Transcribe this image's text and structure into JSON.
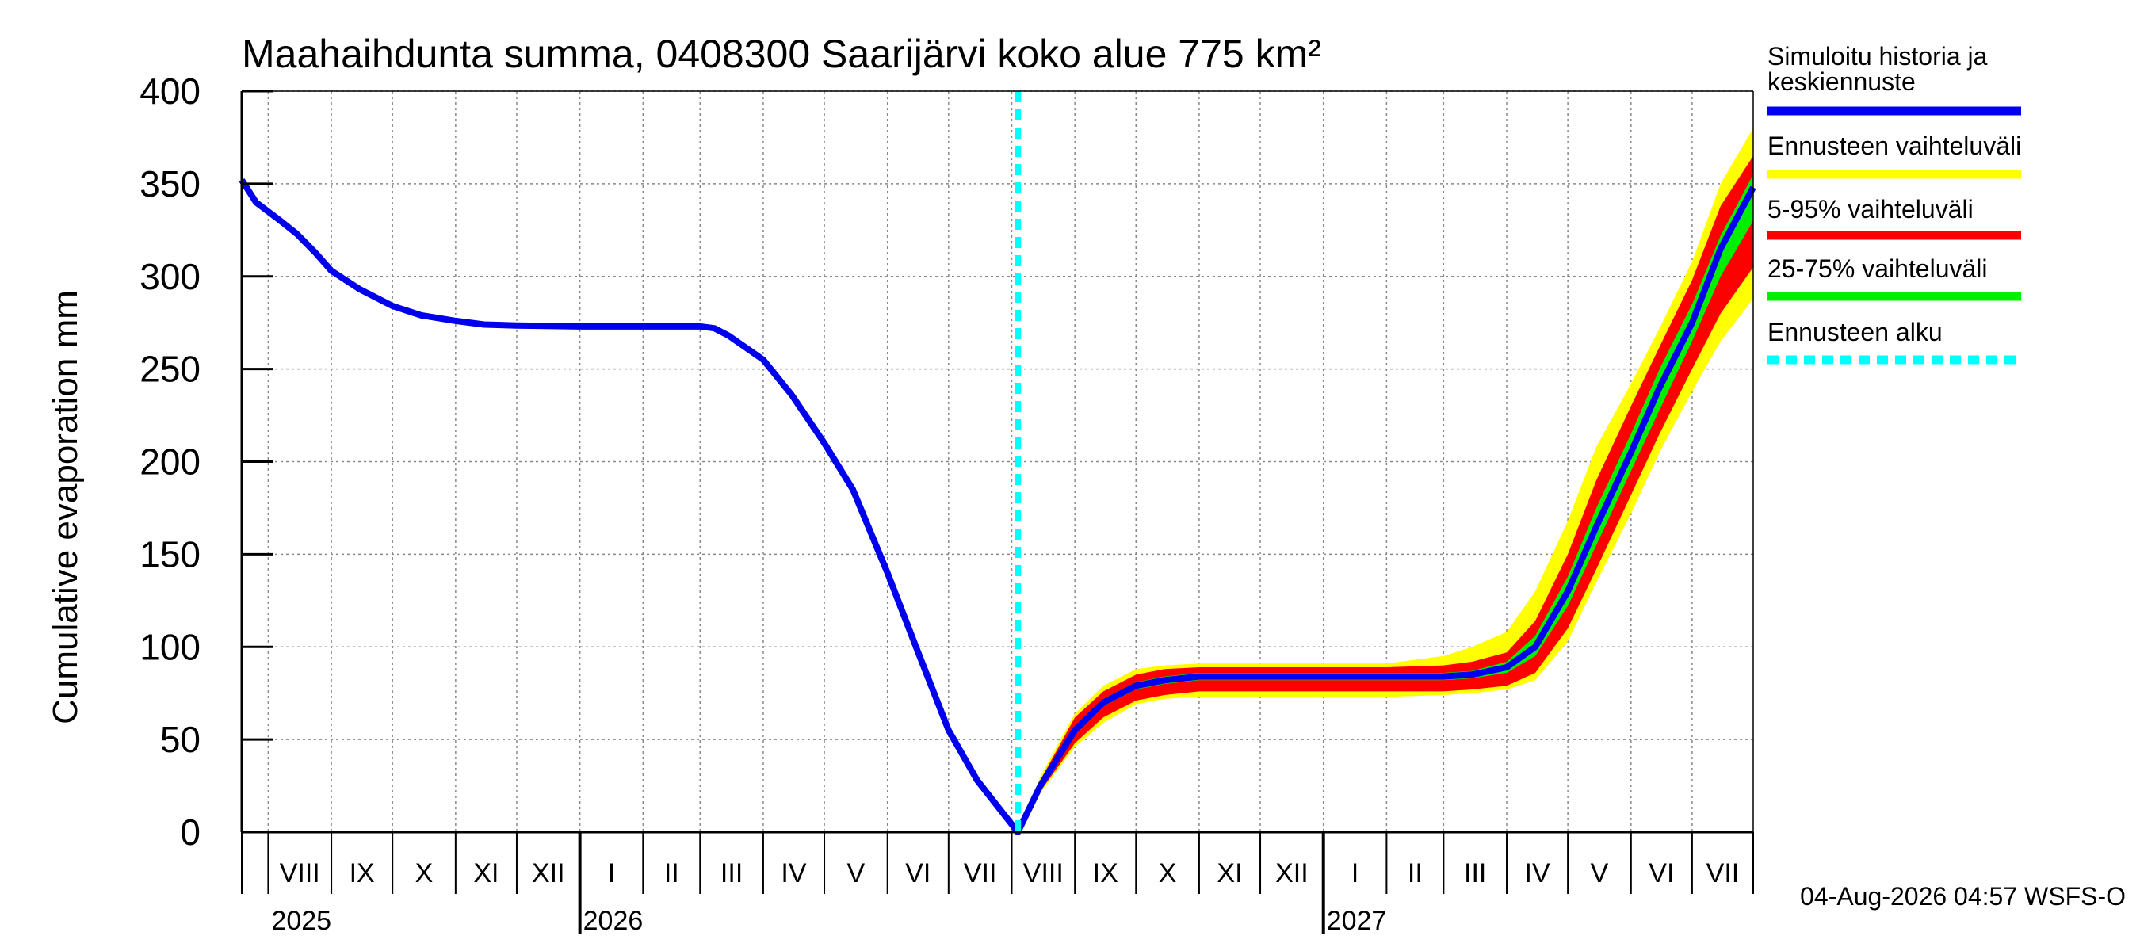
{
  "chart_data": {
    "type": "area",
    "title": "Maahaihdunta summa, 0408300 Saarijärvi koko alue 775 km²",
    "ylabel": "Cumulative evaporation   mm",
    "xlabel": "",
    "ylim": [
      0,
      400
    ],
    "yticks": [
      0,
      50,
      100,
      150,
      200,
      250,
      300,
      350,
      400
    ],
    "grid": true,
    "legend_position": "right",
    "x_range": [
      "2025-07-19",
      "2027-07-31"
    ],
    "forecast_start": "2026-08-04",
    "months": [
      {
        "label": "VIII",
        "start": "2025-08-01"
      },
      {
        "label": "IX",
        "start": "2025-09-01"
      },
      {
        "label": "X",
        "start": "2025-10-01"
      },
      {
        "label": "XI",
        "start": "2025-11-01"
      },
      {
        "label": "XII",
        "start": "2025-12-01"
      },
      {
        "label": "I",
        "start": "2026-01-01"
      },
      {
        "label": "II",
        "start": "2026-02-01"
      },
      {
        "label": "III",
        "start": "2026-03-01"
      },
      {
        "label": "IV",
        "start": "2026-04-01"
      },
      {
        "label": "V",
        "start": "2026-05-01"
      },
      {
        "label": "VI",
        "start": "2026-06-01"
      },
      {
        "label": "VII",
        "start": "2026-07-01"
      },
      {
        "label": "VIII",
        "start": "2026-08-01"
      },
      {
        "label": "IX",
        "start": "2026-09-01"
      },
      {
        "label": "X",
        "start": "2026-10-01"
      },
      {
        "label": "XI",
        "start": "2026-11-01"
      },
      {
        "label": "XII",
        "start": "2026-12-01"
      },
      {
        "label": "I",
        "start": "2027-01-01"
      },
      {
        "label": "II",
        "start": "2027-02-01"
      },
      {
        "label": "III",
        "start": "2027-03-01"
      },
      {
        "label": "IV",
        "start": "2027-04-01"
      },
      {
        "label": "V",
        "start": "2027-05-01"
      },
      {
        "label": "VI",
        "start": "2027-06-01"
      },
      {
        "label": "VII",
        "start": "2027-07-01"
      }
    ],
    "years": [
      {
        "label": "2025",
        "start": "2025-08-01"
      },
      {
        "label": "2026",
        "start": "2026-01-01"
      },
      {
        "label": "2027",
        "start": "2027-01-01"
      }
    ],
    "legend": [
      {
        "label": "Simuloitu historia ja keskiennuste",
        "color": "#0000ee",
        "style": "solid"
      },
      {
        "label": "Ennusteen vaihteluväli",
        "color": "#ffff00",
        "style": "solid"
      },
      {
        "label": "5-95% vaihteluväli",
        "color": "#ff0000",
        "style": "solid"
      },
      {
        "label": "25-75% vaihteluväli",
        "color": "#00ee00",
        "style": "solid"
      },
      {
        "label": "Ennusteen alku",
        "color": "#00ffff",
        "style": "dashed"
      }
    ],
    "history": {
      "name": "Simuloitu historia ja keskiennuste",
      "points": [
        [
          "2025-07-19",
          352
        ],
        [
          "2025-07-26",
          340
        ],
        [
          "2025-08-07",
          330
        ],
        [
          "2025-08-15",
          323
        ],
        [
          "2025-08-24",
          313
        ],
        [
          "2025-09-01",
          303
        ],
        [
          "2025-09-15",
          293
        ],
        [
          "2025-10-01",
          284
        ],
        [
          "2025-10-15",
          279
        ],
        [
          "2025-11-01",
          276
        ],
        [
          "2025-11-15",
          274
        ],
        [
          "2025-12-01",
          273.5
        ],
        [
          "2026-01-01",
          273
        ],
        [
          "2026-02-01",
          273
        ],
        [
          "2026-03-01",
          273
        ],
        [
          "2026-03-08",
          272
        ],
        [
          "2026-03-15",
          268
        ],
        [
          "2026-04-01",
          255
        ],
        [
          "2026-04-15",
          236
        ],
        [
          "2026-05-01",
          210
        ],
        [
          "2026-05-15",
          185
        ],
        [
          "2026-06-01",
          140
        ],
        [
          "2026-06-15",
          100
        ],
        [
          "2026-07-01",
          55
        ],
        [
          "2026-07-15",
          28
        ],
        [
          "2026-08-04",
          0
        ]
      ]
    },
    "forecast": {
      "dates": [
        "2026-08-04",
        "2026-08-15",
        "2026-09-01",
        "2026-09-15",
        "2026-10-01",
        "2026-10-15",
        "2026-11-01",
        "2026-12-01",
        "2027-01-01",
        "2027-02-01",
        "2027-03-01",
        "2027-03-15",
        "2027-04-01",
        "2027-04-15",
        "2027-05-01",
        "2027-05-15",
        "2027-06-01",
        "2027-06-15",
        "2027-07-01",
        "2027-07-15",
        "2027-07-31"
      ],
      "median": [
        0,
        25,
        55,
        70,
        79,
        82,
        84,
        84,
        84,
        84,
        84,
        85,
        89,
        100,
        130,
        165,
        205,
        240,
        275,
        315,
        348
      ],
      "p25": [
        0,
        24,
        53,
        68,
        77,
        80,
        82,
        82,
        82,
        82,
        82,
        83,
        86,
        95,
        122,
        155,
        195,
        228,
        265,
        300,
        330
      ],
      "p75": [
        0,
        26,
        57,
        72,
        81,
        84,
        86,
        86,
        86,
        86,
        86,
        87,
        92,
        106,
        138,
        175,
        215,
        250,
        285,
        322,
        355
      ],
      "p5": [
        0,
        22,
        48,
        62,
        71,
        74,
        76,
        76,
        76,
        76,
        76,
        77,
        79,
        86,
        110,
        142,
        182,
        215,
        250,
        280,
        305
      ],
      "p95": [
        0,
        28,
        62,
        76,
        85,
        88,
        89,
        89,
        89,
        89,
        90,
        92,
        97,
        114,
        150,
        190,
        230,
        262,
        298,
        338,
        365
      ],
      "min": [
        0,
        21,
        46,
        59,
        69,
        72,
        73,
        73,
        73,
        73,
        74,
        75,
        77,
        82,
        103,
        135,
        172,
        205,
        238,
        265,
        288
      ],
      "max": [
        0,
        30,
        64,
        79,
        88,
        90,
        91,
        91,
        91,
        91,
        95,
        100,
        108,
        130,
        168,
        208,
        242,
        272,
        308,
        350,
        380
      ]
    },
    "footer": "04-Aug-2026 04:57 WSFS-O"
  }
}
